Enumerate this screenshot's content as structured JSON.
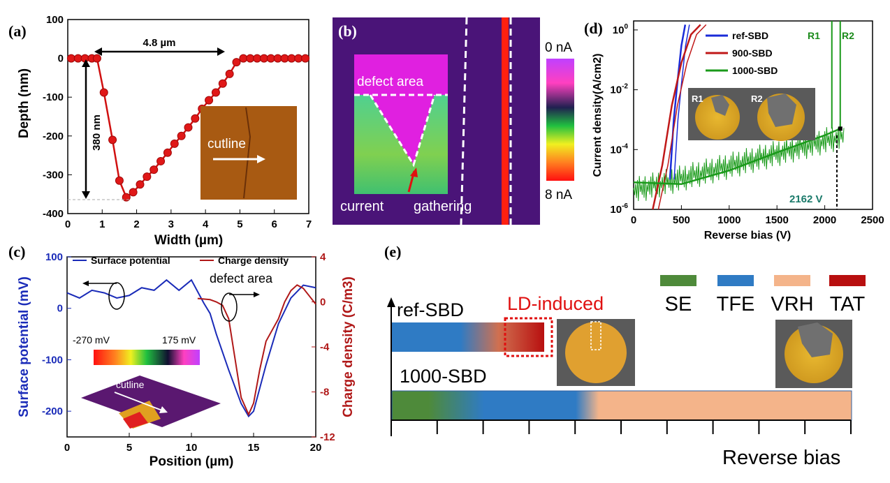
{
  "panel_a": {
    "label": "(a)",
    "width_annotation": "4.8 µm",
    "depth_annotation": "380 nm",
    "inset_label": "cutline",
    "chart_data": {
      "type": "line",
      "xlabel": "Width (µm)",
      "ylabel": "Depth (nm)",
      "xlim": [
        0,
        7
      ],
      "ylim": [
        -400,
        100
      ],
      "xticks": [
        "0",
        "1",
        "2",
        "3",
        "4",
        "5",
        "6",
        "7"
      ],
      "yticks": [
        "100",
        "0",
        "-100",
        "-200",
        "-300",
        "-400"
      ],
      "series": [
        {
          "x": [
            0.1,
            0.3,
            0.5,
            0.7,
            0.85,
            1.05,
            1.3,
            1.5,
            1.7,
            1.9,
            2.1,
            2.3,
            2.5,
            2.7,
            2.9,
            3.1,
            3.3,
            3.5,
            3.7,
            3.9,
            4.1,
            4.3,
            4.5,
            4.7,
            4.9,
            5.1,
            5.3,
            5.5,
            5.7,
            5.9,
            6.1,
            6.3,
            6.5,
            6.7,
            6.9
          ],
          "y": [
            0,
            0,
            0,
            0,
            0,
            -88,
            -210,
            -315,
            -358,
            -345,
            -325,
            -305,
            -287,
            -265,
            -243,
            -220,
            -200,
            -178,
            -155,
            -130,
            -108,
            -88,
            -65,
            -40,
            -10,
            0,
            0,
            0,
            0,
            0,
            0,
            0,
            0,
            0,
            0
          ]
        }
      ]
    }
  },
  "panel_b": {
    "label": "(b)",
    "defect_label": "defect area",
    "current_label": "current",
    "gathering_label": "gathering",
    "scale_top": "0 nA",
    "scale_bottom": "8 nA"
  },
  "panel_c": {
    "label": "(c)",
    "legend": [
      "Surface potential",
      "Charge density"
    ],
    "defect_label": "defect area",
    "scale_min": "-270 mV",
    "scale_max": "175 mV",
    "inset_label": "cutline",
    "chart_data": {
      "type": "line",
      "xlabel": "Position (µm)",
      "ylabel": "Surface potential (mV)",
      "y2label": "Charge density (C/m3)",
      "xlim": [
        0,
        20
      ],
      "ylim": [
        -250,
        100
      ],
      "y2lim": [
        -12,
        4
      ],
      "xticks": [
        "0",
        "5",
        "10",
        "15",
        "20"
      ],
      "yticks": [
        "100",
        "0",
        "-100",
        "-200"
      ],
      "y2ticks": [
        "4",
        "0",
        "-4",
        "-8",
        "-12"
      ],
      "series": [
        {
          "name": "Surface potential",
          "color": "#1a2bb8",
          "x": [
            0,
            1,
            2,
            3,
            4,
            5,
            6,
            7,
            8,
            9,
            10,
            11,
            11.5,
            12,
            13,
            14,
            14.6,
            15,
            16,
            17,
            18,
            19,
            20
          ],
          "y": [
            30,
            20,
            35,
            30,
            20,
            25,
            40,
            35,
            55,
            35,
            55,
            10,
            -10,
            -50,
            -120,
            -185,
            -210,
            -200,
            -110,
            -30,
            20,
            45,
            40
          ]
        },
        {
          "name": "Charge density",
          "color": "#b01818",
          "x": [
            10.5,
            11.5,
            12,
            12.5,
            13,
            13.5,
            14,
            14.6,
            15,
            15.5,
            16,
            16.5,
            17,
            17.5,
            18,
            18.5,
            19,
            19.5,
            20
          ],
          "y": [
            0.3,
            0.2,
            0.0,
            -0.3,
            -1.5,
            -5.0,
            -8.5,
            -10.0,
            -9.0,
            -6.0,
            -3.5,
            -2.5,
            -1.5,
            0.0,
            1.0,
            1.5,
            1.2,
            0.5,
            -0.2
          ]
        }
      ]
    }
  },
  "panel_d": {
    "label": "(d)",
    "r1": "R1",
    "r2": "R2",
    "voltage_annotation": "2162 V",
    "legend": [
      "ref-SBD",
      "900-SBD",
      "1000-SBD"
    ],
    "chart_data": {
      "type": "line",
      "xlabel": "Reverse bias (V)",
      "ylabel": "Current density(A/cm2)",
      "xlim": [
        0,
        2500
      ],
      "ylim": [
        1e-06,
        2
      ],
      "log_y": true,
      "xticks": [
        "0",
        "500",
        "1000",
        "1500",
        "2000",
        "2500"
      ],
      "yticks": [
        "10^0",
        "10^-2",
        "10^-4",
        "10^-6"
      ],
      "series": [
        {
          "name": "ref-SBD",
          "color": "#1a2bd8",
          "x": [
            380,
            420,
            460,
            500,
            540
          ],
          "y": [
            1e-05,
            0.001,
            0.02,
            0.3,
            1.5
          ]
        },
        {
          "name": "900-SBD",
          "color": "#c01818",
          "x": [
            200,
            300,
            400,
            500,
            600,
            700
          ],
          "y": [
            1e-06,
            3e-05,
            0.003,
            0.08,
            0.7,
            1.5
          ]
        },
        {
          "name": "1000-SBD",
          "color": "#1a9a1a",
          "x": [
            0,
            500,
            1000,
            1500,
            2000,
            2162
          ],
          "y": [
            8e-06,
            7e-06,
            2e-05,
            8e-05,
            0.0003,
            0.0005
          ]
        }
      ]
    }
  },
  "panel_e": {
    "label": "(e)",
    "ld_label": "LD-induced",
    "ref_label": "ref-SBD",
    "sbd_label": "1000-SBD",
    "axis_label": "Reverse bias",
    "legend": [
      {
        "name": "SE",
        "color": "#4e8a3a"
      },
      {
        "name": "TFE",
        "color": "#2f7bc4"
      },
      {
        "name": "VRH",
        "color": "#f4b48a"
      },
      {
        "name": "TAT",
        "color": "#b80f0f"
      }
    ]
  }
}
